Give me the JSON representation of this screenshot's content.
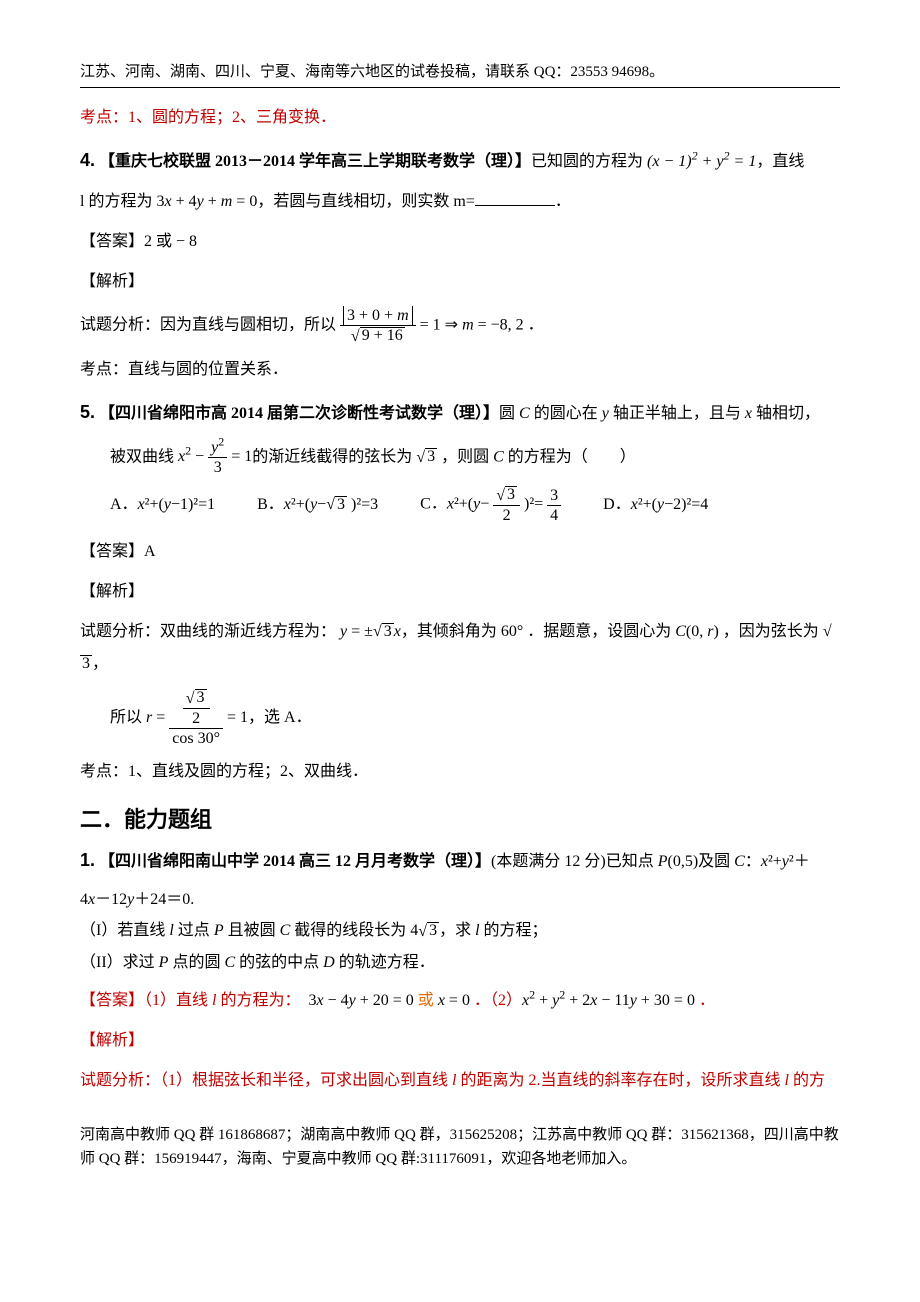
{
  "header": {
    "note": "江苏、河南、湖南、四川、宁夏、海南等六地区的试卷投稿，请联系 QQ：23553 94698。"
  },
  "topline": {
    "text": "考点：1、圆的方程；2、三角变换．",
    "color": "#c00000"
  },
  "q4": {
    "num": "4.",
    "source": "【重庆七校联盟 2013－2014 学年高三上学期联考数学（理）】",
    "stem_a": "已知圆的方程为",
    "eq1": "(x − 1)² + y² = 1",
    "stem_b": "，直线",
    "line2_a": "l 的方程为",
    "eq2": "3x + 4y + m = 0",
    "line2_b": "，若圆与直线相切，则实数 m=",
    "period": "．",
    "ans_label": "【答案】",
    "ans_val": "2 或 − 8",
    "jiexi": "【解析】",
    "analysis_a": "试题分析：因为直线与圆相切，所以",
    "frac_num": "|3 + 0 + m|",
    "frac_den_rad": "9 + 16",
    "analysis_b": " = 1 ⇒ m = −8, 2 ．",
    "kaodian": "考点：直线与圆的位置关系．"
  },
  "q5": {
    "num": "5.",
    "source": "【四川省绵阳市高 2014 届第二次诊断性考试数学（理）】",
    "stem_a": "圆 C 的圆心在 y 轴正半轴上，且与 x 轴相切，",
    "stem_b": "被双曲线",
    "hyp_a": "x² − ",
    "hyp_num": "y²",
    "hyp_den": "3",
    "hyp_b": " = 1",
    "stem_c": "的渐近线截得的弦长为",
    "chord": "3",
    "stem_d": " ，则圆 C 的方程为（　　）",
    "opts": {
      "A": "A．x²+(y−1)²=1",
      "B_a": "B．x²+(y−",
      "B_rad": "3",
      "B_b": " )²=3",
      "C_a": "C．x²+(y−",
      "C_num_rad": "3",
      "C_num_den": "2",
      "C_b": " )²=",
      "C_rhs_num": "3",
      "C_rhs_den": "4",
      "D": "D．x²+(y−2)²=4"
    },
    "ans_label": "【答案】",
    "ans_val": "A",
    "jiexi": "【解析】",
    "analysis_a": "试题分析：双曲线的渐近线方程为：",
    "asym_a": "y = ±",
    "asym_rad": "3",
    "asym_b": "x",
    "analysis_b": "，其倾斜角为 60° ．据题意，设圆心为 C(0, r) ，因为弦长为",
    "chord2": "3",
    "analysis_c": "，",
    "so_a": "所以 r = ",
    "r_top_rad": "3",
    "r_top_den": "2",
    "r_bot": "cos 30°",
    "so_b": " = 1，选 A．",
    "kaodian": "考点：1、直线及圆的方程；2、双曲线．"
  },
  "section2": {
    "title": "二．能力题组"
  },
  "p1": {
    "num": "1.",
    "source": "【四川省绵阳南山中学 2014 高三 12 月月考数学（理）】",
    "stem_a": "(本题满分 12 分)已知点 P(0,5)及圆 C：x²+y²＋",
    "stem_b": "4x－12y＋24＝0.",
    "i": "（I）若直线 l 过点 P 且被圆 C 截得的线段长为 4",
    "i_rad": "3",
    "i_b": "，求 l 的方程；",
    "ii": "（II）求过 P 点的圆 C 的弦的中点 D 的轨迹方程．",
    "ans_label": "【答案】",
    "ans_1a": "（1）直线 l 的方程为：　",
    "ans_eq1": "3x − 4y + 20 = 0",
    "ans_or": "或",
    "ans_eq2": "x = 0",
    "ans_2a": "．（2）",
    "ans_eq3": "x² + y² + 2x − 11y + 30 = 0",
    "ans_2b": "．",
    "jiexi": "【解析】",
    "analysis": "试题分析：（1）根据弦长和半径，可求出圆心到直线 l 的距离为 2.当直线的斜率存在时，设所求直线 l 的方"
  },
  "footer": {
    "text": "河南高中教师 QQ 群 161868687；湖南高中教师 QQ 群，315625208；江苏高中教师 QQ 群：315621368，四川高中教师 QQ 群：156919447，海南、宁夏高中教师 QQ 群:311176091，欢迎各地老师加入。"
  },
  "colors": {
    "red": "#c00000",
    "orange": "#e46c0a",
    "black": "#000000",
    "bg": "#ffffff"
  },
  "fonts": {
    "body_size_pt": 12,
    "qnum_size_pt": 14,
    "section_size_pt": 17
  }
}
